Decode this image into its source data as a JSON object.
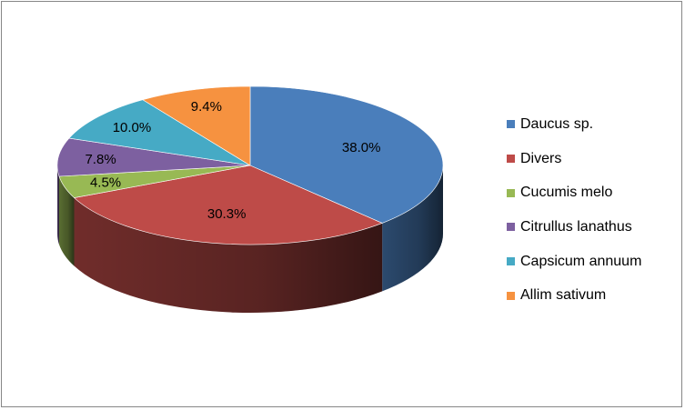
{
  "chart_data": {
    "type": "pie",
    "variant": "3d",
    "legend_position": "right",
    "slices": [
      {
        "label": "Daucus sp.",
        "value": 38.0,
        "data_label": "38.0%",
        "color": "#4a7ebb"
      },
      {
        "label": "Divers",
        "value": 30.3,
        "data_label": "30.3%",
        "color": "#be4b48"
      },
      {
        "label": "Cucumis melo",
        "value": 4.5,
        "data_label": "4.5%",
        "color": "#98b954"
      },
      {
        "label": "Citrullus lanathus",
        "value": 7.8,
        "data_label": "7.8%",
        "color": "#7d60a0"
      },
      {
        "label": "Capsicum annuum",
        "value": 10.0,
        "data_label": "10.0%",
        "color": "#46aac5"
      },
      {
        "label": "Allim sativum",
        "value": 9.4,
        "data_label": "9.4%",
        "color": "#f69240"
      }
    ]
  }
}
